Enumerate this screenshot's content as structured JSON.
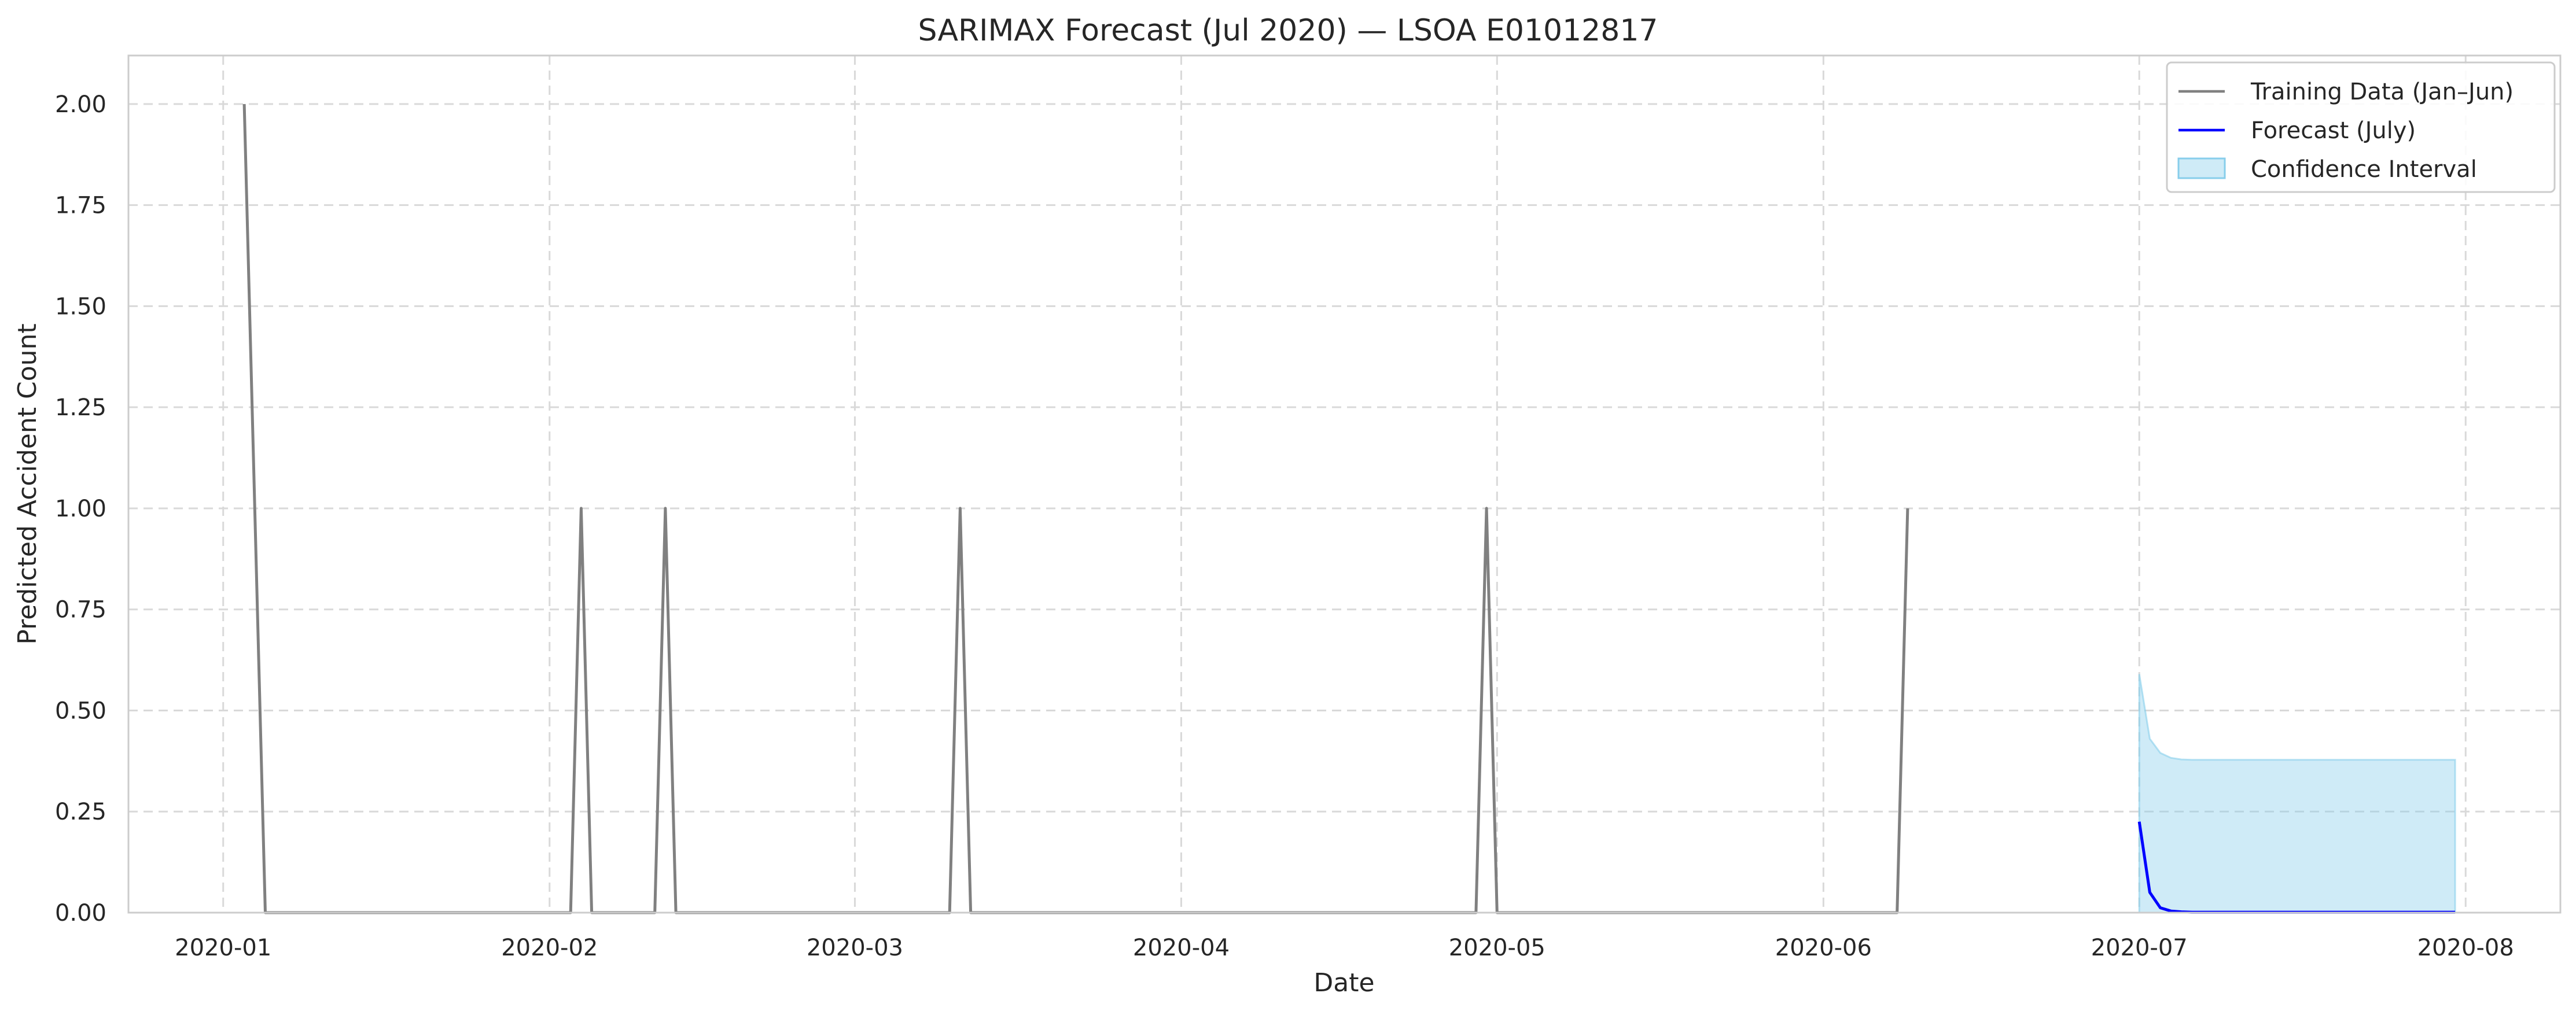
{
  "chart_data": {
    "type": "line",
    "title": "SARIMAX Forecast (Jul 2020) — LSOA E01012817",
    "xlabel": "Date",
    "ylabel": "Predicted Accident Count",
    "xlim": [
      "2019-12-23",
      "2020-08-10"
    ],
    "ylim": [
      0,
      2.12
    ],
    "x_ticks": [
      "2020-01",
      "2020-02",
      "2020-03",
      "2020-04",
      "2020-05",
      "2020-06",
      "2020-07",
      "2020-08"
    ],
    "y_ticks": [
      "0.00",
      "0.25",
      "0.50",
      "0.75",
      "1.00",
      "1.25",
      "1.50",
      "1.75",
      "2.00"
    ],
    "grid": true,
    "legend_position": "top-right",
    "series": [
      {
        "name": "Training Data (Jan–Jun)",
        "color": "#808080",
        "points": [
          [
            "2020-01-03",
            2
          ],
          [
            "2020-01-05",
            0
          ],
          [
            "2020-02-03",
            0
          ],
          [
            "2020-02-04",
            1
          ],
          [
            "2020-02-05",
            0
          ],
          [
            "2020-02-11",
            0
          ],
          [
            "2020-02-12",
            1
          ],
          [
            "2020-02-13",
            0
          ],
          [
            "2020-03-10",
            0
          ],
          [
            "2020-03-11",
            1
          ],
          [
            "2020-03-12",
            0
          ],
          [
            "2020-04-29",
            0
          ],
          [
            "2020-04-30",
            1
          ],
          [
            "2020-05-01",
            0
          ],
          [
            "2020-06-08",
            0
          ],
          [
            "2020-06-09",
            1
          ]
        ]
      },
      {
        "name": "Forecast (July)",
        "color": "#0000ff",
        "points": [
          [
            "2020-07-01",
            0.225
          ],
          [
            "2020-07-02",
            0.05
          ],
          [
            "2020-07-03",
            0.012
          ],
          [
            "2020-07-04",
            0.004
          ],
          [
            "2020-07-05",
            0.002
          ],
          [
            "2020-07-06",
            0.001
          ],
          [
            "2020-07-31",
            0.001
          ]
        ]
      }
    ],
    "confidence_interval": {
      "name": "Confidence Interval",
      "color": "#87ceeb",
      "upper": [
        [
          "2020-07-01",
          0.59
        ],
        [
          "2020-07-02",
          0.43
        ],
        [
          "2020-07-03",
          0.395
        ],
        [
          "2020-07-04",
          0.383
        ],
        [
          "2020-07-05",
          0.379
        ],
        [
          "2020-07-06",
          0.378
        ],
        [
          "2020-07-31",
          0.378
        ]
      ],
      "lower": [
        [
          "2020-07-01",
          0
        ],
        [
          "2020-07-31",
          0
        ]
      ]
    }
  }
}
